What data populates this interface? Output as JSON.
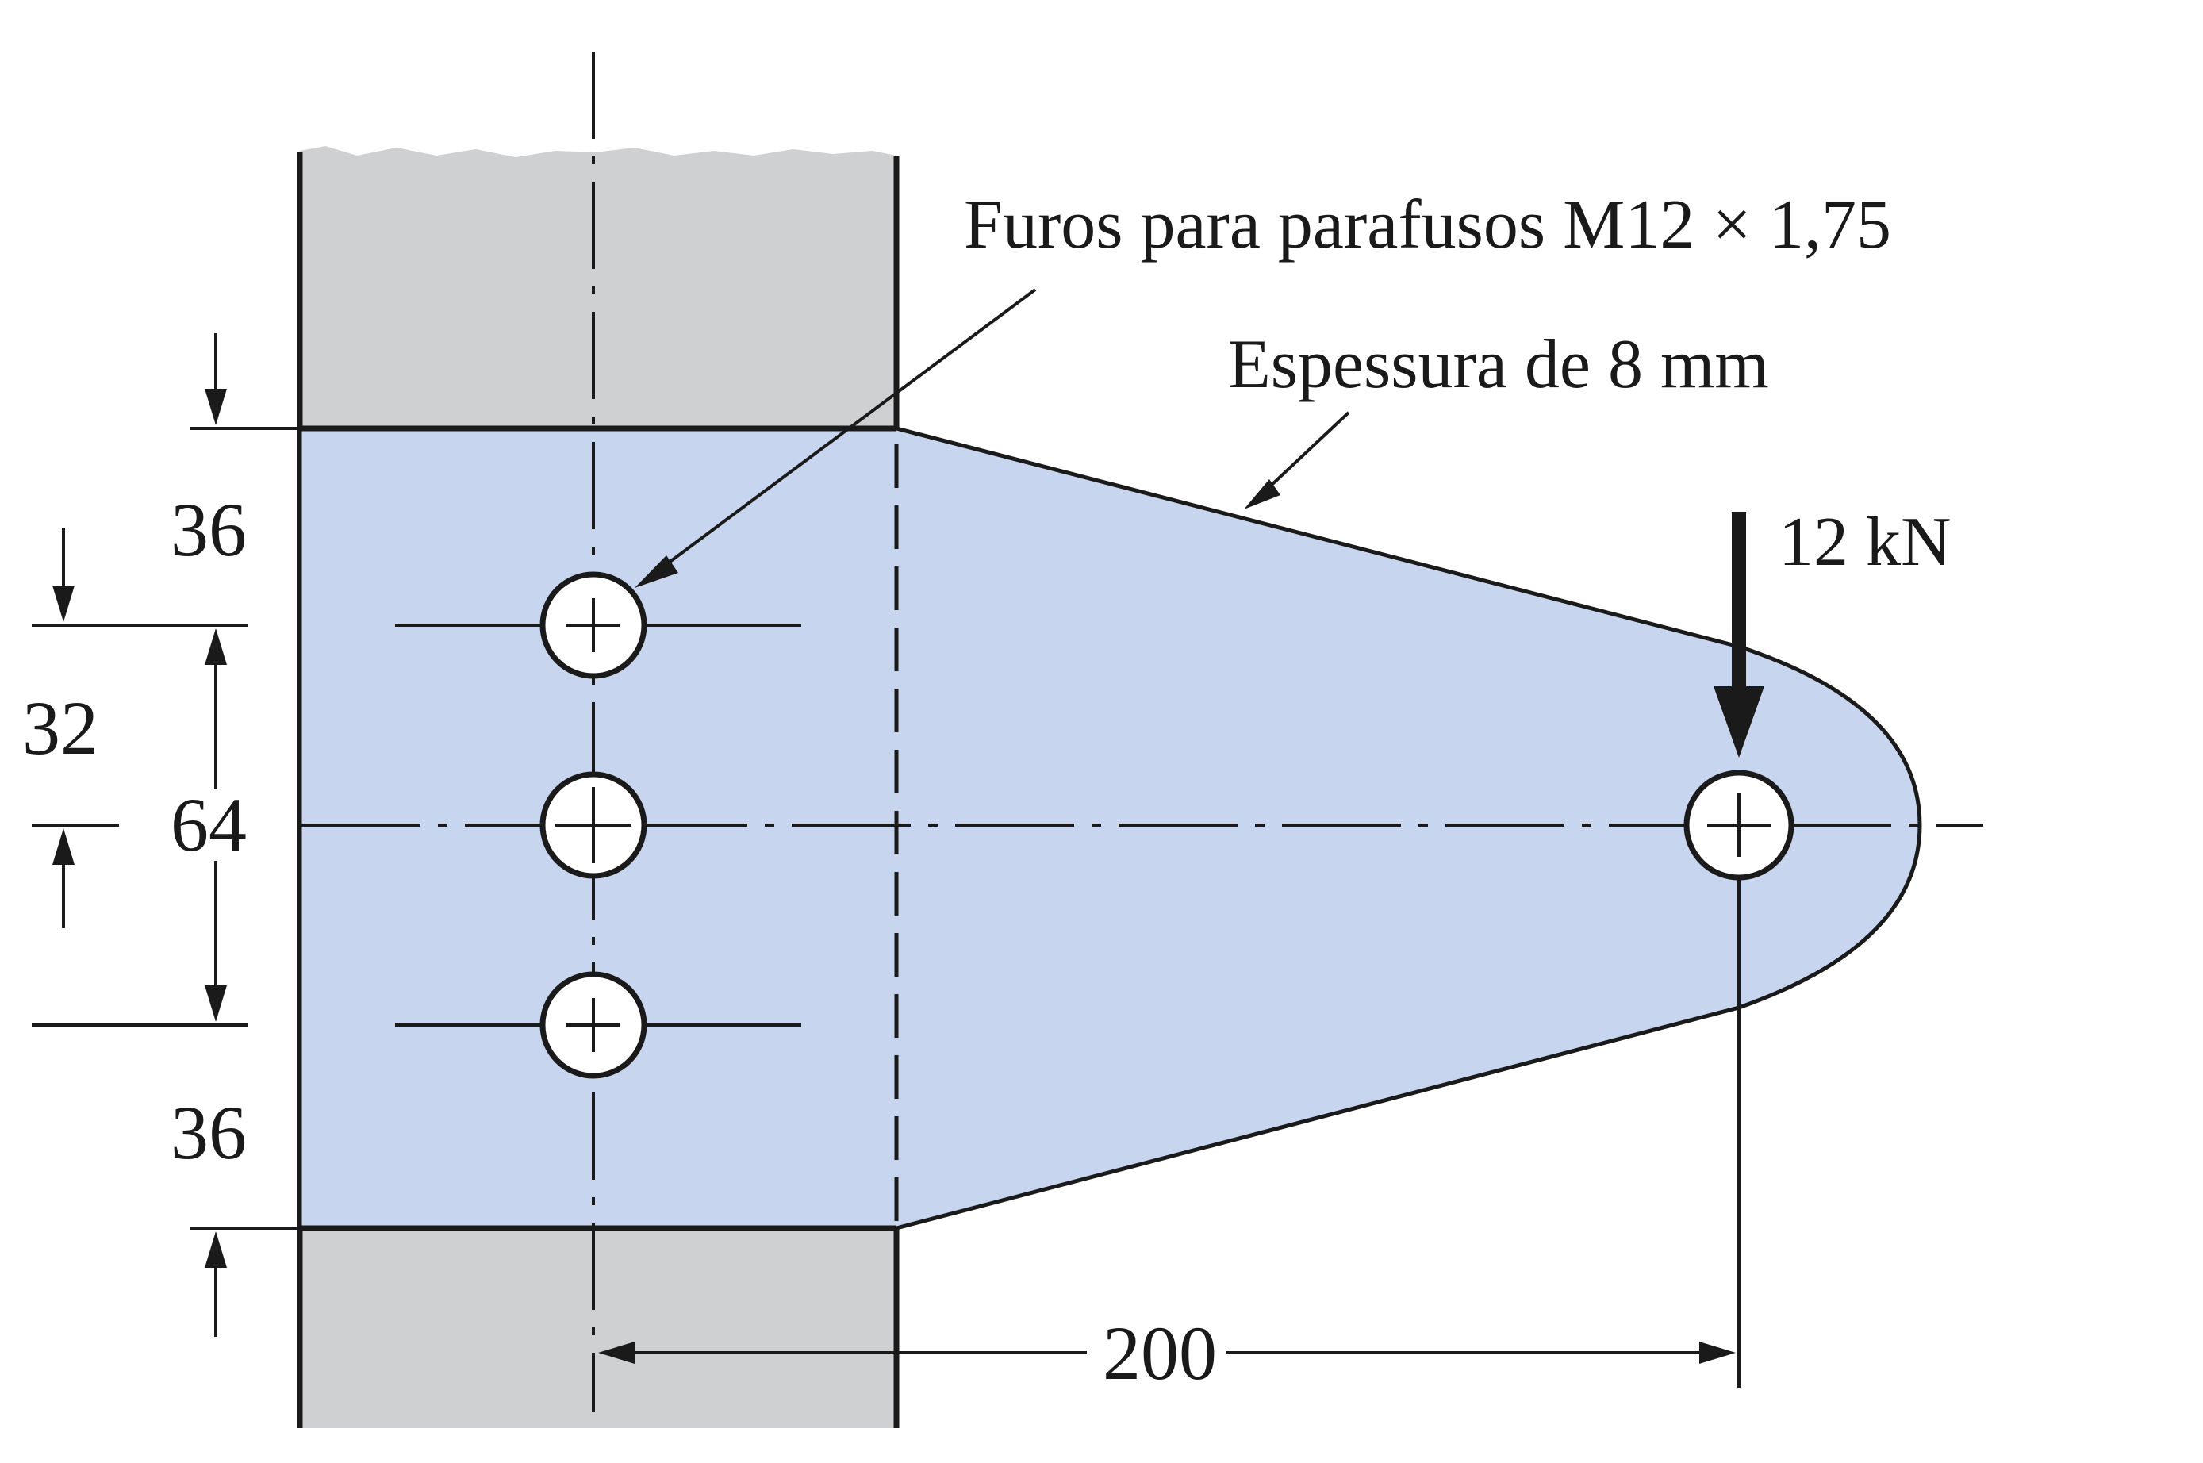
{
  "labels": {
    "bolt_holes": "Furos para parafusos M12 × 1,75",
    "thickness": "Espessura de 8 mm",
    "load": "12 kN"
  },
  "dimensions": {
    "top_edge": "36",
    "bottom_edge": "36",
    "half_spacing": "32",
    "hole_spacing": "64",
    "load_distance": "200"
  },
  "colors": {
    "column": "#cfd0d2",
    "plate": "#c7d6ee",
    "ink": "#1a1a1a"
  }
}
